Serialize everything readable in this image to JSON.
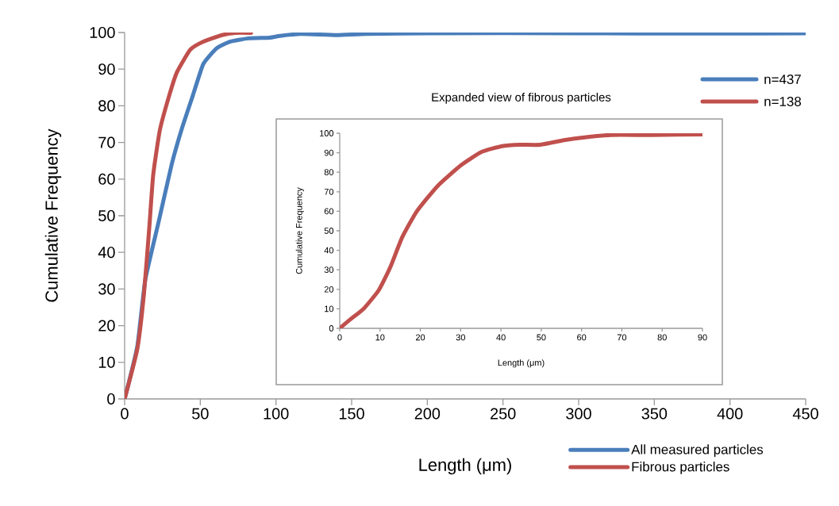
{
  "chart_data": [
    {
      "type": "line",
      "xlabel": "Length (μm)",
      "ylabel": "Cumulative Frequency",
      "xlim": [
        0,
        450
      ],
      "ylim": [
        0,
        100
      ],
      "xticks": [
        0,
        50,
        100,
        150,
        200,
        250,
        300,
        350,
        400,
        450
      ],
      "yticks": [
        0,
        10,
        20,
        30,
        40,
        50,
        60,
        70,
        80,
        90,
        100
      ],
      "legend": "bottom",
      "grid": false,
      "marker": "none",
      "line_style": "solid",
      "annotations": [
        "n=437",
        "n=138"
      ],
      "series": [
        {
          "name": "All measured particles",
          "color": "#4a7ebb",
          "x": [
            0,
            8.4,
            13.6,
            22.4,
            31.1,
            38,
            45,
            52,
            60.8,
            69.6,
            81.8,
            95.8,
            102.8,
            116.8,
            140,
            160,
            200,
            300,
            380,
            450
          ],
          "values": [
            0,
            14.4,
            32.4,
            48.2,
            64,
            74,
            82.7,
            91.4,
            95.7,
            97.5,
            98.4,
            98.6,
            99.1,
            99.6,
            99.3,
            99.6,
            99.8,
            99.8,
            99.7,
            99.8
          ]
        },
        {
          "name": "Fibrous particles",
          "color": "#c0504d",
          "x": [
            0,
            8.4,
            12.8,
            16.3,
            18.9,
            23.3,
            29.4,
            34.6,
            43.4,
            52,
            64.3,
            73,
            83.6
          ],
          "values": [
            0,
            13.7,
            28.8,
            46.8,
            61.2,
            73.4,
            82.7,
            89.2,
            95.3,
            97.5,
            99.3,
            99.9,
            99.9
          ]
        }
      ]
    },
    {
      "type": "line",
      "title": "Expanded view of fibrous particles",
      "xlabel": "Length (μm)",
      "ylabel": "Cumulative Frequency",
      "xlim": [
        0,
        90
      ],
      "ylim": [
        0,
        100
      ],
      "xticks": [
        0,
        10,
        20,
        30,
        40,
        50,
        60,
        70,
        80,
        90
      ],
      "yticks": [
        0,
        10,
        20,
        30,
        40,
        50,
        60,
        70,
        80,
        90,
        100
      ],
      "series": [
        {
          "color": "#c0504d",
          "x": [
            0,
            2.4,
            6,
            9.7,
            12.6,
            15.5,
            19.2,
            24.3,
            30.1,
            35.2,
            40.3,
            44.7,
            49.8,
            55.6,
            60.7,
            67.3,
            77.5,
            90
          ],
          "values": [
            0,
            4.2,
            10.2,
            19.6,
            31.6,
            46.7,
            60.2,
            73,
            83.6,
            90.4,
            93.4,
            94.1,
            94.1,
            96.4,
            97.9,
            99.1,
            99.1,
            99.4
          ]
        }
      ]
    }
  ]
}
